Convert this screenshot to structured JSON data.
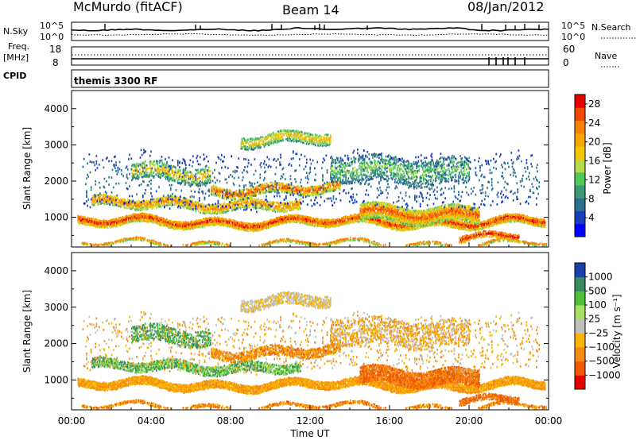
{
  "header": {
    "station": "McMurdo (fitACF)",
    "beam": "Beam 14",
    "date": "08/Jan/2012"
  },
  "noise_panel": {
    "left_label": "N.Sky",
    "right_label": "N.Search",
    "left_ticks": [
      "10^5",
      "10^0"
    ],
    "right_ticks": [
      "10^5",
      "10^0"
    ]
  },
  "freq_panel": {
    "left_label_line1": "Freq.",
    "left_label_line2": "[MHz]",
    "right_label": "Nave",
    "left_ticks": [
      "18",
      "8"
    ],
    "right_ticks": [
      "60",
      "0"
    ]
  },
  "cpid": {
    "label": "CPID",
    "text": "themis 3300 RF"
  },
  "colors": {
    "power_scale": [
      "#0000ff",
      "#1a3fbd",
      "#2e6f8e",
      "#3c9a78",
      "#52c75a",
      "#b8d94a",
      "#f2c700",
      "#f7a800",
      "#f58200",
      "#ee4a00",
      "#e60000"
    ],
    "velocity_scale": [
      "#e60000",
      "#ef5a00",
      "#f58a10",
      "#f7b500",
      "#bfbfbf",
      "#a6e066",
      "#4fbf3a",
      "#3a8a5e",
      "#1c3fa8"
    ]
  },
  "chart_data": [
    {
      "type": "heatmap",
      "name": "power",
      "ylabel": "Slant Range [km]",
      "ylim": [
        180,
        4500
      ],
      "yticks": [
        "1000",
        "2000",
        "3000",
        "4000"
      ],
      "xlim": [
        0,
        24
      ],
      "colorbar_label": "Power [dB]",
      "colorbar_ticks": [
        "4",
        "8",
        "12",
        "16",
        "20",
        "24",
        "28"
      ],
      "colorbar_range": [
        0,
        30
      ]
    },
    {
      "type": "heatmap",
      "name": "velocity",
      "ylabel": "Slant Range [km]",
      "ylim": [
        180,
        4500
      ],
      "yticks": [
        "1000",
        "2000",
        "3000",
        "4000"
      ],
      "xlim": [
        0,
        24
      ],
      "xticks": [
        "00:00",
        "04:00",
        "08:00",
        "12:00",
        "16:00",
        "20:00",
        "00:00"
      ],
      "xlabel": "Time UT",
      "colorbar_label": "Velocity [m s⁻¹]",
      "colorbar_ticks": [
        "1000",
        "500",
        "100",
        "25",
        "−25",
        "−100",
        "−500",
        "−1000"
      ]
    }
  ]
}
